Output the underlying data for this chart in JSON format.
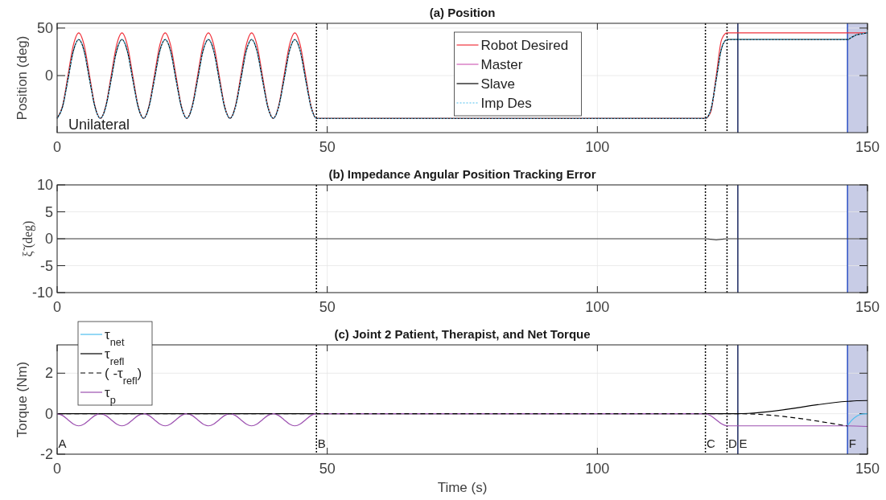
{
  "chart_data": [
    {
      "type": "line",
      "title": "(a) Position",
      "ylabel": "Position (deg)",
      "xlim": [
        0,
        150
      ],
      "ylim": [
        -60,
        55
      ],
      "xticks": [
        0,
        50,
        100,
        150
      ],
      "yticks": [
        0,
        50
      ],
      "grid": true,
      "legend": "top",
      "series": [
        {
          "name": "Robot Desired",
          "color": "#f0323c",
          "line_style": "solid",
          "x": [
            0,
            1,
            2,
            3,
            4,
            5,
            6,
            7,
            8,
            9,
            10,
            11,
            12,
            13,
            14,
            15,
            16,
            17,
            18,
            19,
            20,
            21,
            22,
            23,
            24,
            25,
            26,
            27,
            28,
            29,
            30,
            31,
            32,
            33,
            34,
            35,
            36,
            37,
            38,
            39,
            40,
            41,
            42,
            43,
            44,
            45,
            46,
            47,
            48,
            120,
            121,
            122,
            123,
            124,
            150
          ],
          "values": [
            -45,
            -32,
            0,
            32,
            45,
            32,
            0,
            -32,
            -45,
            -32,
            0,
            32,
            45,
            32,
            0,
            -32,
            -45,
            -32,
            0,
            32,
            45,
            32,
            0,
            -32,
            -45,
            -32,
            0,
            32,
            45,
            32,
            0,
            -32,
            -45,
            -32,
            0,
            32,
            45,
            32,
            0,
            -32,
            -45,
            -32,
            0,
            32,
            45,
            32,
            0,
            -32,
            -45,
            -45,
            -38,
            0,
            38,
            45,
            45
          ]
        },
        {
          "name": "Master",
          "color": "#d060b8",
          "line_style": "solid"
        },
        {
          "name": "Slave",
          "color": "#000000",
          "line_style": "solid",
          "x": [
            0,
            1,
            2,
            3,
            4,
            5,
            6,
            7,
            8,
            9,
            10,
            11,
            12,
            13,
            14,
            15,
            16,
            17,
            18,
            19,
            20,
            21,
            22,
            23,
            24,
            25,
            26,
            27,
            28,
            29,
            30,
            31,
            32,
            33,
            34,
            35,
            36,
            37,
            38,
            39,
            40,
            41,
            42,
            43,
            44,
            45,
            46,
            47,
            48,
            120,
            121,
            122,
            123,
            124,
            146.3,
            147,
            148,
            149,
            150
          ],
          "values": [
            -45,
            -33,
            -4,
            26,
            38,
            26,
            -4,
            -33,
            -45,
            -33,
            -4,
            26,
            38,
            26,
            -4,
            -33,
            -45,
            -33,
            -4,
            26,
            38,
            26,
            -4,
            -33,
            -45,
            -33,
            -4,
            26,
            38,
            26,
            -4,
            -33,
            -45,
            -33,
            -4,
            26,
            38,
            26,
            -4,
            -33,
            -45,
            -33,
            -4,
            26,
            38,
            26,
            -4,
            -33,
            -45,
            -45,
            -36,
            -4,
            29,
            38,
            38,
            40,
            43,
            44,
            45
          ]
        },
        {
          "name": "Imp Des",
          "color": "#4dbeee",
          "line_style": "dotted",
          "x": [
            0,
            1,
            2,
            3,
            4,
            5,
            6,
            7,
            8,
            9,
            10,
            11,
            12,
            13,
            14,
            15,
            16,
            17,
            18,
            19,
            20,
            21,
            22,
            23,
            24,
            25,
            26,
            27,
            28,
            29,
            30,
            31,
            32,
            33,
            34,
            35,
            36,
            37,
            38,
            39,
            40,
            41,
            42,
            43,
            44,
            45,
            46,
            47,
            48,
            120,
            121,
            122,
            123,
            124,
            146.3,
            147,
            148,
            149,
            150
          ],
          "values": [
            -45,
            -33,
            -4,
            26,
            38,
            26,
            -4,
            -33,
            -45,
            -33,
            -4,
            26,
            38,
            26,
            -4,
            -33,
            -45,
            -33,
            -4,
            26,
            38,
            26,
            -4,
            -33,
            -45,
            -33,
            -4,
            26,
            38,
            26,
            -4,
            -33,
            -45,
            -33,
            -4,
            26,
            38,
            26,
            -4,
            -33,
            -45,
            -33,
            -4,
            26,
            38,
            26,
            -4,
            -33,
            -45,
            -45,
            -36,
            -4,
            29,
            38,
            38,
            40,
            43,
            44,
            45
          ]
        }
      ],
      "ref_lines": [
        {
          "axis": "x",
          "value": 48,
          "color": "#000000",
          "line_style": "dotted"
        },
        {
          "axis": "x",
          "value": 120,
          "color": "#000000",
          "line_style": "dotted"
        },
        {
          "axis": "x",
          "value": 124,
          "color": "#000000",
          "line_style": "dotted"
        },
        {
          "axis": "x",
          "value": 126,
          "color": "#1a2860",
          "line_style": "solid"
        },
        {
          "axis": "x",
          "value": 146.3,
          "color": "#2a4fc4",
          "line_style": "solid"
        }
      ],
      "bands": [
        {
          "axis": "x",
          "from": 146.3,
          "to": 150,
          "color": "#c8cce6"
        }
      ],
      "annotations": [
        "Unilateral"
      ]
    },
    {
      "type": "line",
      "title": "(b) Impedance Angular Position Tracking Error",
      "ylabel": "ξ̃ (deg)",
      "xlim": [
        0,
        150
      ],
      "ylim": [
        -10,
        10
      ],
      "xticks": [
        0,
        50,
        100,
        150
      ],
      "yticks": [
        -10,
        -5,
        0,
        5,
        10
      ],
      "grid": true,
      "series": [
        {
          "color": "#404040",
          "line_style": "solid",
          "x": [
            0,
            120,
            121,
            122,
            123,
            124,
            150
          ],
          "values": [
            0,
            0,
            -0.1,
            -0.2,
            -0.1,
            0,
            0
          ]
        }
      ],
      "ref_lines": [
        {
          "axis": "x",
          "value": 48,
          "color": "#000000",
          "line_style": "dotted"
        },
        {
          "axis": "x",
          "value": 120,
          "color": "#000000",
          "line_style": "dotted"
        },
        {
          "axis": "x",
          "value": 124,
          "color": "#000000",
          "line_style": "dotted"
        },
        {
          "axis": "x",
          "value": 126,
          "color": "#1a2860",
          "line_style": "solid"
        },
        {
          "axis": "x",
          "value": 146.3,
          "color": "#2a4fc4",
          "line_style": "solid"
        }
      ],
      "bands": [
        {
          "axis": "x",
          "from": 146.3,
          "to": 150,
          "color": "#c8cce6"
        }
      ]
    },
    {
      "type": "line",
      "title": "(c) Joint 2 Patient, Therapist, and Net Torque",
      "xlabel": "Time (s)",
      "ylabel": "Torque (Nm)",
      "xlim": [
        0,
        150
      ],
      "ylim": [
        -2,
        3.4
      ],
      "xticks": [
        0,
        50,
        100,
        150
      ],
      "yticks": [
        -2,
        0,
        2
      ],
      "grid": true,
      "legend": "top left",
      "series": [
        {
          "name": "τ$_{net}$",
          "color": "#4dbeee",
          "line_style": "solid",
          "x": [
            146.3,
            147,
            148,
            149,
            150
          ],
          "values": [
            -0.6,
            -0.35,
            -0.12,
            -0.02,
            0
          ]
        },
        {
          "name": "τ$_{refl}$",
          "color": "#000000",
          "line_style": "solid",
          "x": [
            0,
            126,
            146.3,
            148,
            150
          ],
          "values": [
            0,
            0,
            0.61,
            0.64,
            0.65
          ]
        },
        {
          "name": "( -τ$_{refl}$)",
          "color": "#000000",
          "line_style": "dashed",
          "x": [
            0,
            126,
            146.3
          ],
          "values": [
            0,
            0,
            -0.61
          ]
        },
        {
          "name": "τ$_{p}$",
          "color": "#9c50b0",
          "line_style": "solid",
          "x": [
            0,
            1,
            2,
            3,
            4,
            5,
            6,
            7,
            8,
            9,
            10,
            11,
            12,
            13,
            14,
            15,
            16,
            17,
            18,
            19,
            20,
            21,
            22,
            23,
            24,
            25,
            26,
            27,
            28,
            29,
            30,
            31,
            32,
            33,
            34,
            35,
            36,
            37,
            38,
            39,
            40,
            41,
            42,
            43,
            44,
            45,
            46,
            47,
            48,
            120,
            121,
            122,
            123,
            124,
            146.3,
            150
          ],
          "values": [
            0,
            -0.09,
            -0.3,
            -0.51,
            -0.6,
            -0.51,
            -0.3,
            -0.09,
            0,
            -0.09,
            -0.3,
            -0.51,
            -0.6,
            -0.51,
            -0.3,
            -0.09,
            0,
            -0.09,
            -0.3,
            -0.51,
            -0.6,
            -0.51,
            -0.3,
            -0.09,
            0,
            -0.09,
            -0.3,
            -0.51,
            -0.6,
            -0.51,
            -0.3,
            -0.09,
            0,
            -0.09,
            -0.3,
            -0.51,
            -0.6,
            -0.51,
            -0.3,
            -0.09,
            0,
            -0.09,
            -0.3,
            -0.51,
            -0.6,
            -0.51,
            -0.3,
            -0.09,
            0,
            0,
            -0.1,
            -0.3,
            -0.5,
            -0.6,
            -0.6,
            -0.63
          ]
        }
      ],
      "ref_lines": [
        {
          "axis": "x",
          "value": 48,
          "color": "#000000",
          "line_style": "dotted"
        },
        {
          "axis": "x",
          "value": 120,
          "color": "#000000",
          "line_style": "dotted"
        },
        {
          "axis": "x",
          "value": 124,
          "color": "#000000",
          "line_style": "dotted"
        },
        {
          "axis": "x",
          "value": 126,
          "color": "#1a2860",
          "line_style": "solid"
        },
        {
          "axis": "x",
          "value": 146.3,
          "color": "#2a4fc4",
          "line_style": "solid"
        }
      ],
      "bands": [
        {
          "axis": "x",
          "from": 146.3,
          "to": 150,
          "color": "#c8cce6"
        }
      ],
      "annotations": [
        "A",
        "B",
        "C",
        "D",
        "E",
        "F"
      ]
    }
  ]
}
